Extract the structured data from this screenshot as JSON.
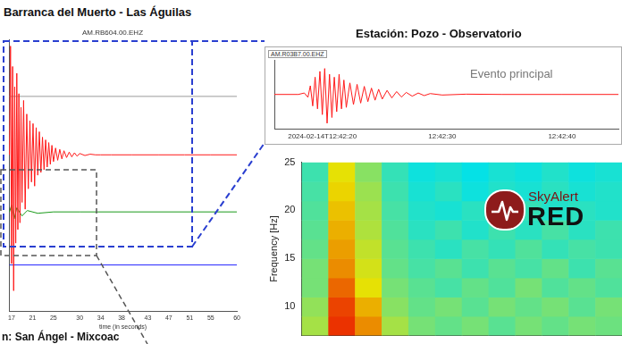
{
  "chart_data": [
    {
      "type": "line",
      "title": "Barranca del Muerto - Las Águilas",
      "subtitle": "AM.RB604.00.EHZ",
      "x_label": "time (in seconds)",
      "annotations": [
        "n: San Ángel - Mixcoac"
      ],
      "xlim": [
        16.5,
        60
      ],
      "xticks": [
        17,
        21,
        25,
        30,
        34,
        38,
        43,
        47,
        51,
        55,
        60
      ],
      "ylim": [
        -10,
        10
      ],
      "grid": false,
      "tick_labels": "x",
      "series": [
        {
          "color": "#ff1a1a",
          "x": [
            16.6,
            16.8,
            17.0,
            17.2,
            17.4,
            17.6,
            17.8,
            18.0,
            18.2,
            18.4,
            18.6,
            18.8,
            19.0,
            19.3,
            19.6,
            19.9,
            20.2,
            20.5,
            20.8,
            21.1,
            21.4,
            21.7,
            22.0,
            22.3,
            22.6,
            22.9,
            23.2,
            23.5,
            23.8,
            24.1,
            24.4,
            24.7,
            25.0,
            25.4,
            25.8,
            26.2,
            26.6,
            27.0,
            27.5,
            28.0,
            28.5,
            29.0,
            29.5,
            30.0,
            31,
            32,
            33,
            34,
            36,
            40,
            45,
            50,
            55,
            60
          ],
          "values": [
            1.5,
            9.5,
            -6.5,
            8.0,
            -8.5,
            6.5,
            -5.0,
            7.5,
            -4.0,
            6.0,
            -3.5,
            5.0,
            -2.0,
            5.5,
            -2.5,
            4.5,
            -1.0,
            4.0,
            -0.5,
            3.8,
            -0.8,
            3.5,
            0.0,
            3.2,
            0.2,
            2.8,
            0.4,
            2.6,
            0.6,
            2.4,
            0.8,
            2.2,
            1.0,
            2.0,
            1.1,
            1.9,
            1.2,
            1.8,
            1.3,
            1.7,
            1.35,
            1.65,
            1.4,
            1.6,
            1.45,
            1.55,
            1.5,
            1.5,
            1.5,
            1.5,
            1.5,
            1.5,
            1.5,
            1.5
          ]
        },
        {
          "color": "#1a9a1a",
          "x": [
            16.6,
            17.0,
            17.5,
            18,
            19,
            20,
            22,
            25,
            30,
            60
          ],
          "values": [
            -2.7,
            -2.2,
            -3.2,
            -2.4,
            -3.0,
            -2.6,
            -2.8,
            -2.7,
            -2.7,
            -2.7
          ]
        },
        {
          "color": "#2a2aff",
          "x": [
            16.6,
            60
          ],
          "values": [
            -6.6,
            -6.6
          ]
        },
        {
          "color": "#9a9a9a",
          "x": [
            16.6,
            60
          ],
          "values": [
            5.8,
            5.8
          ]
        }
      ]
    },
    {
      "type": "line",
      "title": "Estación: Pozo - Observatorio",
      "subtitle": "AM.R03B7.00.EHZ",
      "annotations": [
        "Evento principal"
      ],
      "xlim": [
        16,
        44.7
      ],
      "xticks": [
        {
          "value": 20,
          "label": "2024-02-14T12:42:20"
        },
        {
          "value": 30,
          "label": "12:42:30"
        },
        {
          "value": 40,
          "label": "12:42:40"
        }
      ],
      "ylim": [
        -1.2,
        1.2
      ],
      "grid": false,
      "tick_labels": "x",
      "series": [
        {
          "color": "#ff1a1a",
          "x": [
            16,
            18,
            18.5,
            18.8,
            19.0,
            19.2,
            19.4,
            19.6,
            19.8,
            20.0,
            20.2,
            20.4,
            20.6,
            20.8,
            21.0,
            21.2,
            21.4,
            21.6,
            21.8,
            22.0,
            22.3,
            22.6,
            22.9,
            23.2,
            23.5,
            23.8,
            24.1,
            24.4,
            24.7,
            25.0,
            25.4,
            25.8,
            26.2,
            26.6,
            27.0,
            27.5,
            28.0,
            28.5,
            29.0,
            30,
            32,
            35,
            40,
            44.7
          ],
          "values": [
            0,
            0,
            0.05,
            -0.1,
            0.3,
            -0.4,
            0.6,
            -0.5,
            0.8,
            -0.7,
            0.9,
            -1.0,
            0.7,
            -0.8,
            0.6,
            -0.6,
            0.7,
            -0.5,
            0.5,
            -0.45,
            0.4,
            -0.35,
            0.35,
            -0.3,
            0.28,
            -0.25,
            0.22,
            -0.2,
            0.18,
            -0.16,
            0.14,
            -0.12,
            0.1,
            -0.09,
            0.07,
            -0.06,
            0.05,
            -0.04,
            0.03,
            -0.02,
            0.01,
            0,
            0,
            0
          ]
        }
      ]
    },
    {
      "type": "heatmap",
      "y_label": "Frequency [Hz]",
      "ylim": [
        7,
        25
      ],
      "yticks": [
        10,
        15,
        20,
        25
      ],
      "xlim": [
        0,
        12
      ],
      "tick_labels": "y",
      "grid": false,
      "annotations": [
        "SkyAlert",
        "RED"
      ],
      "x_edges": [
        0,
        1,
        2,
        3,
        4,
        5,
        6,
        7,
        8,
        9,
        10,
        11,
        12
      ],
      "y_edges": [
        7,
        9,
        11,
        13,
        15,
        17,
        19,
        21,
        23,
        25
      ],
      "zlim": [
        0,
        1
      ],
      "cells": [
        [
          0.55,
          0.82,
          0.72,
          0.55,
          0.5,
          0.48,
          0.5,
          0.47,
          0.5,
          0.48,
          0.5,
          0.49
        ],
        [
          0.53,
          0.8,
          0.68,
          0.52,
          0.48,
          0.5,
          0.47,
          0.5,
          0.48,
          0.5,
          0.47,
          0.5
        ],
        [
          0.5,
          0.76,
          0.62,
          0.5,
          0.47,
          0.45,
          0.48,
          0.46,
          0.5,
          0.46,
          0.48,
          0.46
        ],
        [
          0.5,
          0.72,
          0.6,
          0.48,
          0.45,
          0.47,
          0.44,
          0.47,
          0.45,
          0.48,
          0.44,
          0.47
        ],
        [
          0.48,
          0.7,
          0.58,
          0.47,
          0.44,
          0.42,
          0.45,
          0.43,
          0.46,
          0.43,
          0.45,
          0.44
        ],
        [
          0.47,
          0.68,
          0.56,
          0.46,
          0.42,
          0.44,
          0.41,
          0.44,
          0.42,
          0.45,
          0.42,
          0.44
        ],
        [
          0.46,
          0.66,
          0.55,
          0.45,
          0.41,
          0.4,
          0.42,
          0.4,
          0.43,
          0.41,
          0.42,
          0.41
        ],
        [
          0.45,
          0.64,
          0.54,
          0.44,
          0.4,
          0.42,
          0.39,
          0.41,
          0.4,
          0.42,
          0.4,
          0.41
        ],
        [
          0.44,
          0.62,
          0.52,
          0.43,
          0.39,
          0.4,
          0.38,
          0.4,
          0.39,
          0.41,
          0.39,
          0.4
        ]
      ]
    }
  ]
}
